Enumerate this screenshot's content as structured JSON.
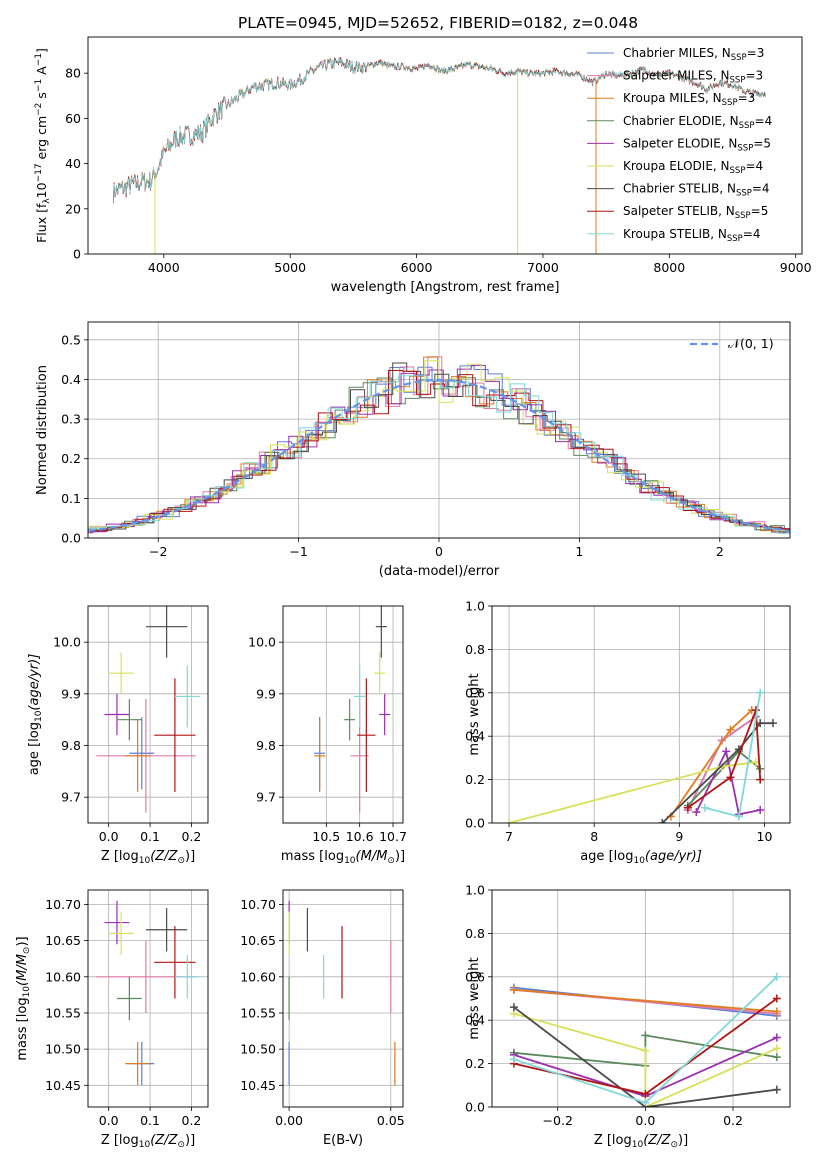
{
  "title": "PLATE=0945, MJD=52652, FIBERID=0182, z=0.048",
  "colors": {
    "chabrier_miles": "#5b7fd6",
    "salpeter_miles": "#e07aa8",
    "kroupa_miles": "#e07b1e",
    "chabrier_elodie": "#5a8a5a",
    "salpeter_elodie": "#9b2fb0",
    "kroupa_elodie": "#d8e05a",
    "chabrier_stelib": "#4a4a4a",
    "salpeter_stelib": "#b01515",
    "kroupa_stelib": "#80d8d8",
    "gaussian": "#6495ed",
    "grid": "#b0b0b0"
  },
  "chart_data": [
    {
      "id": "spectrum",
      "type": "line",
      "xlabel": "wavelength [Angstrom, rest frame]",
      "ylabel_main": "Flux [f",
      "ylabel_sub": "λ",
      "ylabel_rest": "10",
      "ylabel_exp1": "−17",
      "ylabel_mid": " erg cm",
      "ylabel_exp2": "−2",
      "ylabel_mid2": " s",
      "ylabel_exp3": "−1",
      "ylabel_end": " A",
      "ylabel_exp4": "−1",
      "ylabel_close": "]",
      "xlim": [
        3400,
        9050
      ],
      "ylim": [
        0,
        96
      ],
      "xticks": [
        "4000",
        "5000",
        "6000",
        "7000",
        "8000",
        "9000"
      ],
      "xtick_values": [
        4000,
        5000,
        6000,
        7000,
        8000,
        9000
      ],
      "yticks": [
        "0",
        "20",
        "40",
        "60",
        "80"
      ],
      "ytick_values": [
        0,
        20,
        40,
        60,
        80
      ],
      "legend": [
        {
          "name": "Chabrier MILES, N",
          "sub": "SSP",
          "tail": "=3",
          "color": "chabrier_miles"
        },
        {
          "name": "Salpeter MILES, N",
          "sub": "SSP",
          "tail": "=3",
          "color": "salpeter_miles"
        },
        {
          "name": "Kroupa MILES, N",
          "sub": "SSP",
          "tail": "=3",
          "color": "kroupa_miles"
        },
        {
          "name": "Chabrier ELODIE, N",
          "sub": "SSP",
          "tail": "=4",
          "color": "chabrier_elodie"
        },
        {
          "name": "Salpeter ELODIE, N",
          "sub": "SSP",
          "tail": "=5",
          "color": "salpeter_elodie"
        },
        {
          "name": "Kroupa ELODIE, N",
          "sub": "SSP",
          "tail": "=4",
          "color": "kroupa_elodie"
        },
        {
          "name": "Chabrier STELIB, N",
          "sub": "SSP",
          "tail": "=4",
          "color": "chabrier_stelib"
        },
        {
          "name": "Salpeter STELIB, N",
          "sub": "SSP",
          "tail": "=5",
          "color": "salpeter_stelib"
        },
        {
          "name": "Kroupa STELIB, N",
          "sub": "SSP",
          "tail": "=4",
          "color": "kroupa_stelib"
        }
      ],
      "spectrum_x": [
        3600,
        3700,
        3800,
        3900,
        3950,
        4000,
        4100,
        4200,
        4300,
        4400,
        4500,
        4600,
        4700,
        4800,
        4900,
        5000,
        5100,
        5200,
        5300,
        5400,
        5500,
        5600,
        5700,
        5800,
        5900,
        6000,
        6100,
        6200,
        6300,
        6400,
        6500,
        6600,
        6700,
        6800,
        6900,
        7000,
        7100,
        7200,
        7300,
        7400,
        7500,
        7600,
        7700,
        7800,
        7900,
        8000,
        8100,
        8200,
        8300,
        8400,
        8500,
        8600,
        8700,
        8760
      ],
      "spectrum_y": [
        28,
        30,
        32,
        33,
        38,
        45,
        52,
        53,
        54,
        62,
        66,
        70,
        74,
        75,
        76,
        75,
        78,
        82,
        84,
        85,
        83,
        83,
        85,
        83,
        83,
        82,
        84,
        81,
        82,
        84,
        83,
        82,
        80,
        81,
        80,
        80,
        81,
        80,
        79,
        76,
        80,
        79,
        80,
        82,
        79,
        80,
        78,
        76,
        73,
        76,
        75,
        72,
        71,
        71
      ],
      "dips": [
        {
          "x": 3930,
          "y": 0,
          "series": "kroupa_elodie"
        },
        {
          "x": 6800,
          "y": 0,
          "series": "kroupa_elodie"
        },
        {
          "x": 7420,
          "y": 0,
          "series": "kroupa_miles"
        }
      ]
    },
    {
      "id": "residuals",
      "type": "histogram",
      "xlabel": "(data-model)/error",
      "ylabel": "Normed distribution",
      "xlim": [
        -2.5,
        2.5
      ],
      "ylim": [
        0,
        0.545
      ],
      "xticks": [
        "−2",
        "−1",
        "0",
        "1",
        "2"
      ],
      "xtick_values": [
        -2,
        -1,
        0,
        1,
        2
      ],
      "yticks": [
        "0.0",
        "0.1",
        "0.2",
        "0.3",
        "0.4",
        "0.5"
      ],
      "ytick_values": [
        0,
        0.1,
        0.2,
        0.3,
        0.4,
        0.5
      ],
      "legend_label": "𝒩(0, 1)",
      "bin_width": 0.1
    },
    {
      "id": "age_vs_Z",
      "type": "scatter",
      "xlabel": "Z [log",
      "xlabel_sub": "10",
      "xlabel_tail": "(Z/Z",
      "xlabel_sun": "⊙",
      "xlabel_close": ")]",
      "ylabel": "age  [log",
      "ylabel_sub": "10",
      "ylabel_tail": "(age/yr)]",
      "xlim": [
        -0.05,
        0.24
      ],
      "ylim": [
        9.65,
        10.07
      ],
      "xticks": [
        "0.0",
        "0.1",
        "0.2"
      ],
      "xtick_values": [
        0.0,
        0.1,
        0.2
      ],
      "yticks": [
        "9.7",
        "9.8",
        "9.9",
        "10.0"
      ],
      "ytick_values": [
        9.7,
        9.8,
        9.9,
        10.0
      ]
    },
    {
      "id": "age_vs_mass",
      "type": "scatter",
      "xlabel": "mass [log",
      "xlabel_sub": "10",
      "xlabel_tail": "(M/M",
      "xlabel_sun": "⊙",
      "xlabel_close": ")]",
      "xlim": [
        10.37,
        10.73
      ],
      "ylim": [
        9.65,
        10.07
      ],
      "xticks": [
        "10.5",
        "10.6",
        "10.7"
      ],
      "xtick_values": [
        10.5,
        10.6,
        10.7
      ],
      "yticks": [
        "9.7",
        "9.8",
        "9.9",
        "10.0"
      ],
      "ytick_values": [
        9.7,
        9.8,
        9.9,
        10.0
      ]
    },
    {
      "id": "weight_vs_age",
      "type": "line",
      "xlabel": "age  [log",
      "xlabel_sub": "10",
      "xlabel_tail": "(age/yr)]",
      "ylabel": "mass weight",
      "xlim": [
        6.8,
        10.3
      ],
      "ylim": [
        0,
        1.0
      ],
      "xticks": [
        "7",
        "8",
        "9",
        "10"
      ],
      "xtick_values": [
        7,
        8,
        9,
        10
      ],
      "yticks": [
        "0.0",
        "0.2",
        "0.4",
        "0.6",
        "0.8",
        "1.0"
      ],
      "ytick_values": [
        0,
        0.2,
        0.4,
        0.6,
        0.8,
        1.0
      ]
    },
    {
      "id": "mass_vs_Z",
      "type": "scatter",
      "xlabel": "Z [log",
      "xlabel_sub": "10",
      "xlabel_tail": "(Z/Z",
      "xlabel_sun": "⊙",
      "xlabel_close": ")]",
      "ylabel": "mass [log",
      "ylabel_sub": "10",
      "ylabel_tail": "(M/M",
      "ylabel_sun": "⊙",
      "ylabel_close": ")]",
      "xlim": [
        -0.05,
        0.24
      ],
      "ylim": [
        10.42,
        10.72
      ],
      "xticks": [
        "0.0",
        "0.1",
        "0.2"
      ],
      "xtick_values": [
        0.0,
        0.1,
        0.2
      ],
      "yticks": [
        "10.45",
        "10.50",
        "10.55",
        "10.60",
        "10.65",
        "10.70"
      ],
      "ytick_values": [
        10.45,
        10.5,
        10.55,
        10.6,
        10.65,
        10.7
      ]
    },
    {
      "id": "mass_vs_ebv",
      "type": "scatter",
      "xlabel": "E(B-V)",
      "xlim": [
        -0.003,
        0.056
      ],
      "ylim": [
        10.42,
        10.72
      ],
      "xticks": [
        "0.00",
        "0.05"
      ],
      "xtick_values": [
        0.0,
        0.05
      ],
      "yticks": [
        "10.45",
        "10.50",
        "10.55",
        "10.60",
        "10.65",
        "10.70"
      ],
      "ytick_values": [
        10.45,
        10.5,
        10.55,
        10.6,
        10.65,
        10.7
      ]
    },
    {
      "id": "weight_vs_Z",
      "type": "line",
      "xlabel": "Z [log",
      "xlabel_sub": "10",
      "xlabel_tail": "(Z/Z",
      "xlabel_sun": "⊙",
      "xlabel_close": ")]",
      "ylabel": "mass weight",
      "xlim": [
        -0.35,
        0.33
      ],
      "ylim": [
        0,
        1.0
      ],
      "xticks": [
        "−0.2",
        "0.0",
        "0.2"
      ],
      "xtick_values": [
        -0.2,
        0.0,
        0.2
      ],
      "yticks": [
        "0.0",
        "0.2",
        "0.4",
        "0.6",
        "0.8",
        "1.0"
      ],
      "ytick_values": [
        0,
        0.2,
        0.4,
        0.6,
        0.8,
        1.0
      ]
    }
  ],
  "fits": [
    {
      "key": "chabrier_miles",
      "Z": 0.08,
      "Zerr": 0.03,
      "age": 9.785,
      "ageerr": 0.07,
      "mass": 10.48,
      "masserr": 0.03,
      "mass_ageerr": 0.07,
      "ebv": 0.0,
      "ebverr": 0.05,
      "age_w": [
        [
          9.1,
          0.06
        ],
        [
          9.5,
          0.38
        ],
        [
          9.9,
          0.49
        ]
      ],
      "Z_w": [
        [
          -0.3,
          0.55
        ],
        [
          0.3,
          0.42
        ]
      ]
    },
    {
      "key": "salpeter_miles",
      "Z": 0.09,
      "Zerr": 0.12,
      "age": 9.78,
      "ageerr": 0.11,
      "mass": 10.6,
      "masserr": 0.05,
      "mass_ageerr": 0.11,
      "ebv": 0.05,
      "ebverr": 0.06,
      "age_w": [
        [
          9.1,
          0.06
        ],
        [
          9.5,
          0.38
        ],
        [
          9.9,
          0.49
        ]
      ],
      "Z_w": [
        [
          -0.3,
          0.54
        ],
        [
          0.3,
          0.43
        ]
      ]
    },
    {
      "key": "kroupa_miles",
      "Z": 0.07,
      "Zerr": 0.03,
      "age": 9.78,
      "ageerr": 0.07,
      "mass": 10.48,
      "masserr": 0.03,
      "mass_ageerr": 0.07,
      "ebv": 0.052,
      "ebverr": 0.04,
      "age_w": [
        [
          8.9,
          0.03
        ],
        [
          9.6,
          0.43
        ],
        [
          9.85,
          0.52
        ]
      ],
      "Z_w": [
        [
          -0.3,
          0.54
        ],
        [
          0.3,
          0.44
        ]
      ]
    },
    {
      "key": "chabrier_elodie",
      "Z": 0.05,
      "Zerr": 0.03,
      "age": 9.85,
      "ageerr": 0.04,
      "mass": 10.57,
      "masserr": 0.03,
      "mass_ageerr": 0.04,
      "ebv": 0.0,
      "ebverr": 0.035,
      "age_w": [
        [
          9.1,
          0.08
        ],
        [
          9.7,
          0.33
        ],
        [
          9.95,
          0.25
        ]
      ],
      "Z_w": [
        [
          -0.3,
          0.25
        ],
        [
          0.0,
          0.19
        ],
        [
          0.0,
          0.33
        ],
        [
          0.3,
          0.23
        ]
      ]
    },
    {
      "key": "salpeter_elodie",
      "Z": 0.02,
      "Zerr": 0.03,
      "age": 9.86,
      "ageerr": 0.04,
      "mass": 10.675,
      "masserr": 0.03,
      "mass_ageerr": 0.04,
      "ebv": 0.0,
      "ebverr": 0.045,
      "age_w": [
        [
          9.2,
          0.05
        ],
        [
          9.55,
          0.33
        ],
        [
          9.7,
          0.04
        ],
        [
          9.95,
          0.06
        ]
      ],
      "Z_w": [
        [
          -0.3,
          0.24
        ],
        [
          0.0,
          0.05
        ],
        [
          0.3,
          0.32
        ]
      ]
    },
    {
      "key": "kroupa_elodie",
      "Z": 0.03,
      "Zerr": 0.03,
      "age": 9.94,
      "ageerr": 0.04,
      "mass": 10.66,
      "masserr": 0.03,
      "mass_ageerr": 0.04,
      "ebv": 0.0,
      "ebverr": 0.05,
      "age_w": [
        [
          7.0,
          0.0
        ],
        [
          9.5,
          0.26
        ],
        [
          9.9,
          0.28
        ]
      ],
      "Z_w": [
        [
          -0.3,
          0.43
        ],
        [
          0.0,
          0.26
        ],
        [
          0.0,
          0.0
        ],
        [
          0.3,
          0.27
        ]
      ]
    },
    {
      "key": "chabrier_stelib",
      "Z": 0.14,
      "Zerr": 0.05,
      "age": 10.03,
      "ageerr": 0.06,
      "mass": 10.665,
      "masserr": 0.03,
      "mass_ageerr": 0.06,
      "ebv": 0.009,
      "ebverr": 0.03,
      "age_w": [
        [
          8.8,
          0.0
        ],
        [
          9.7,
          0.34
        ],
        [
          9.95,
          0.46
        ],
        [
          10.1,
          0.46
        ]
      ],
      "Z_w": [
        [
          -0.3,
          0.46
        ],
        [
          0.0,
          0.0
        ],
        [
          0.3,
          0.08
        ]
      ]
    },
    {
      "key": "salpeter_stelib",
      "Z": 0.16,
      "Zerr": 0.05,
      "age": 9.82,
      "ageerr": 0.11,
      "mass": 10.62,
      "masserr": 0.05,
      "mass_ageerr": 0.11,
      "ebv": 0.026,
      "ebverr": 0.035,
      "age_w": [
        [
          9.1,
          0.07
        ],
        [
          9.6,
          0.21
        ],
        [
          9.9,
          0.52
        ],
        [
          9.95,
          0.2
        ]
      ],
      "Z_w": [
        [
          -0.3,
          0.2
        ],
        [
          0.0,
          0.06
        ],
        [
          0.3,
          0.5
        ]
      ]
    },
    {
      "key": "kroupa_stelib",
      "Z": 0.19,
      "Zerr": 0.03,
      "age": 9.895,
      "ageerr": 0.06,
      "mass": 10.6,
      "masserr": 0.03,
      "mass_ageerr": 0.06,
      "ebv": 0.017,
      "ebverr": 0.025,
      "age_w": [
        [
          9.3,
          0.07
        ],
        [
          9.7,
          0.03
        ],
        [
          9.95,
          0.6
        ]
      ],
      "Z_w": [
        [
          -0.3,
          0.22
        ],
        [
          0.0,
          0.02
        ],
        [
          0.3,
          0.6
        ]
      ]
    }
  ]
}
